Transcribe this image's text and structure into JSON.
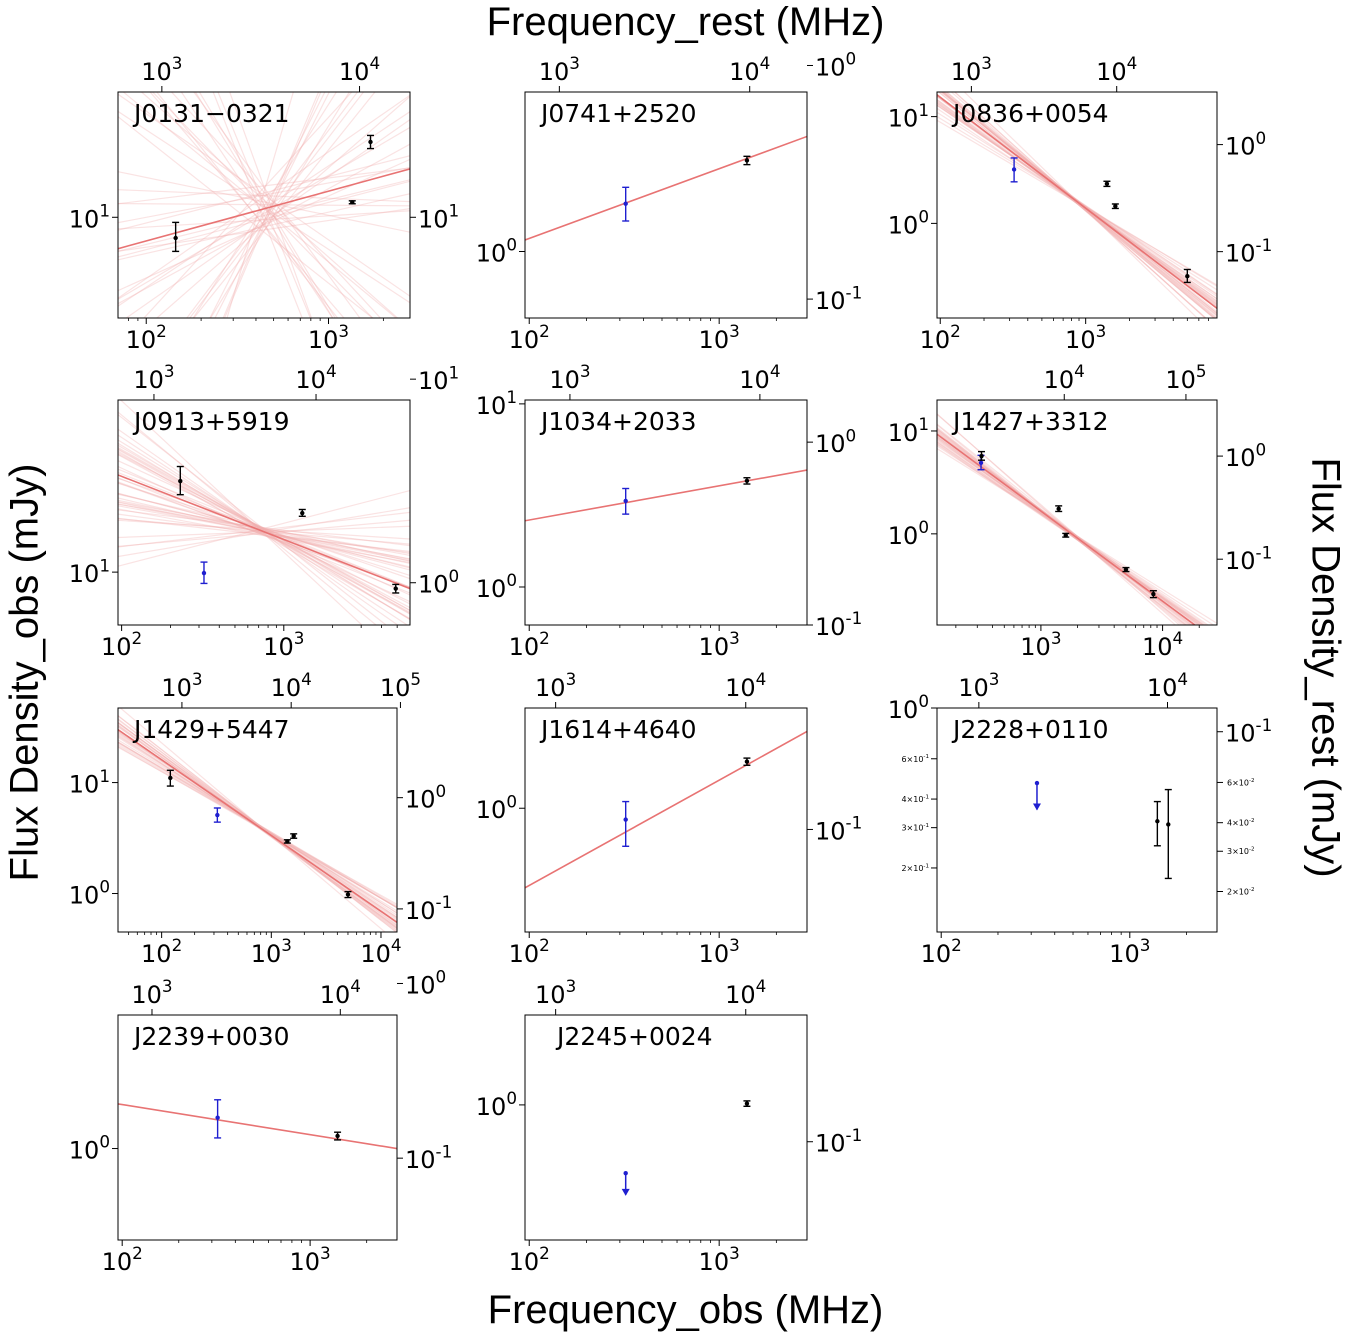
{
  "figure": {
    "top_label": "Frequency_rest (MHz)",
    "bottom_label": "Frequency_obs (MHz)",
    "left_label": "Flux Density_obs (mJy)",
    "right_label": "Flux Density_rest (mJy)",
    "colors": {
      "fit": "#e87373",
      "fit_bundle": "#f2b0b0",
      "detection": "#000000",
      "low_freq": "#1f1fd0"
    }
  },
  "chart_data": [
    {
      "type": "scatter",
      "name": "J0131−0321",
      "scale": "log",
      "xlim": [
        70,
        2800
      ],
      "ylim": [
        8.2,
        12.8
      ],
      "rest_xlim": [
        600,
        18000
      ],
      "rest_ylim": [
        8.2,
        12.8
      ],
      "x_ticks": [
        {
          "v": 100,
          "l": "10^2"
        },
        {
          "v": 1000,
          "l": "10^3"
        }
      ],
      "y_ticks": [
        {
          "v": 10,
          "l": "10^1"
        }
      ],
      "top_ticks": [
        {
          "v": 1000,
          "l": "10^3"
        },
        {
          "v": 10000,
          "l": "10^4"
        }
      ],
      "right_ticks": [
        {
          "v": 10,
          "l": "10^1"
        }
      ],
      "fit": {
        "x": [
          70,
          2800
        ],
        "y": [
          9.4,
          11.0
        ]
      },
      "bundle": "wide",
      "points": [
        {
          "x": 145,
          "y": 9.6,
          "lo": 9.35,
          "hi": 9.9,
          "color": "black",
          "upper": false
        },
        {
          "x": 1350,
          "y": 10.3,
          "lo": 10.27,
          "hi": 10.33,
          "color": "black",
          "upper": false
        },
        {
          "x": 1700,
          "y": 11.6,
          "lo": 11.45,
          "hi": 11.75,
          "color": "black",
          "upper": false
        }
      ]
    },
    {
      "type": "scatter",
      "name": "J0741+2520",
      "scale": "log",
      "xlim": [
        95,
        2900
      ],
      "ylim": [
        0.52,
        4.8
      ],
      "rest_xlim": [
        660,
        20000
      ],
      "rest_ylim": [
        0.083,
        0.77
      ],
      "x_ticks": [
        {
          "v": 100,
          "l": "10^2"
        },
        {
          "v": 1000,
          "l": "10^3"
        }
      ],
      "y_ticks": [
        {
          "v": 1,
          "l": "10^0"
        }
      ],
      "top_ticks": [
        {
          "v": 1000,
          "l": "10^3"
        },
        {
          "v": 10000,
          "l": "10^4"
        }
      ],
      "right_ticks": [
        {
          "v": 1,
          "l": "10^0"
        },
        {
          "v": 0.1,
          "l": "10^-1"
        }
      ],
      "fit": {
        "x": [
          95,
          2900
        ],
        "y": [
          1.12,
          3.1
        ]
      },
      "bundle": "none",
      "points": [
        {
          "x": 322,
          "y": 1.6,
          "lo": 1.35,
          "hi": 1.88,
          "color": "blue",
          "upper": false
        },
        {
          "x": 1400,
          "y": 2.45,
          "lo": 2.35,
          "hi": 2.55,
          "color": "black",
          "upper": false
        }
      ]
    },
    {
      "type": "scatter",
      "name": "J0836+0054",
      "scale": "log",
      "xlim": [
        95,
        8000
      ],
      "ylim": [
        0.13,
        17
      ],
      "rest_xlim": [
        580,
        49000
      ],
      "rest_ylim": [
        0.024,
        3.1
      ],
      "x_ticks": [
        {
          "v": 100,
          "l": "10^2"
        },
        {
          "v": 1000,
          "l": "10^3"
        }
      ],
      "y_ticks": [
        {
          "v": 1,
          "l": "10^0"
        },
        {
          "v": 10,
          "l": "10^1"
        }
      ],
      "top_ticks": [
        {
          "v": 1000,
          "l": "10^3"
        },
        {
          "v": 10000,
          "l": "10^4"
        }
      ],
      "right_ticks": [
        {
          "v": 1,
          "l": "10^0"
        },
        {
          "v": 0.1,
          "l": "10^-1"
        }
      ],
      "fit": {
        "x": [
          95,
          8000
        ],
        "y": [
          16.0,
          0.16
        ]
      },
      "bundle": "medium",
      "points": [
        {
          "x": 322,
          "y": 3.2,
          "lo": 2.45,
          "hi": 4.1,
          "color": "blue",
          "upper": false
        },
        {
          "x": 1400,
          "y": 2.35,
          "lo": 2.22,
          "hi": 2.48,
          "color": "black",
          "upper": false
        },
        {
          "x": 1600,
          "y": 1.45,
          "lo": 1.38,
          "hi": 1.52,
          "color": "black",
          "upper": false
        },
        {
          "x": 5000,
          "y": 0.32,
          "lo": 0.28,
          "hi": 0.37,
          "color": "black",
          "upper": false
        }
      ]
    },
    {
      "type": "scatter",
      "name": "J0913+5919",
      "scale": "log",
      "xlim": [
        95,
        6000
      ],
      "ylim": [
        5.5,
        70
      ],
      "rest_xlim": [
        600,
        38000
      ],
      "rest_ylim": [
        0.62,
        7.9
      ],
      "x_ticks": [
        {
          "v": 100,
          "l": "10^2"
        },
        {
          "v": 1000,
          "l": "10^3"
        }
      ],
      "y_ticks": [
        {
          "v": 10,
          "l": "10^1"
        }
      ],
      "top_ticks": [
        {
          "v": 1000,
          "l": "10^3"
        },
        {
          "v": 10000,
          "l": "10^4"
        }
      ],
      "right_ticks": [
        {
          "v": 10,
          "l": "10^1"
        },
        {
          "v": 1,
          "l": "10^0"
        }
      ],
      "fit": {
        "x": [
          95,
          6000
        ],
        "y": [
          30,
          8.3
        ]
      },
      "bundle": "wide",
      "points": [
        {
          "x": 230,
          "y": 28,
          "lo": 24,
          "hi": 33,
          "color": "black",
          "upper": false
        },
        {
          "x": 322,
          "y": 9.9,
          "lo": 8.8,
          "hi": 11.2,
          "color": "blue",
          "upper": false
        },
        {
          "x": 1300,
          "y": 19.5,
          "lo": 18.8,
          "hi": 20.3,
          "color": "black",
          "upper": false
        },
        {
          "x": 4900,
          "y": 8.3,
          "lo": 7.9,
          "hi": 8.7,
          "color": "black",
          "upper": false
        }
      ]
    },
    {
      "type": "scatter",
      "name": "J1034+2033",
      "scale": "log",
      "xlim": [
        95,
        2900
      ],
      "ylim": [
        0.62,
        10.5
      ],
      "rest_xlim": [
        580,
        17700
      ],
      "rest_ylim": [
        0.1,
        1.7
      ],
      "x_ticks": [
        {
          "v": 100,
          "l": "10^2"
        },
        {
          "v": 1000,
          "l": "10^3"
        }
      ],
      "y_ticks": [
        {
          "v": 1,
          "l": "10^0"
        },
        {
          "v": 10,
          "l": "10^1"
        }
      ],
      "top_ticks": [
        {
          "v": 1000,
          "l": "10^3"
        },
        {
          "v": 10000,
          "l": "10^4"
        }
      ],
      "right_ticks": [
        {
          "v": 1,
          "l": "10^0"
        },
        {
          "v": 0.1,
          "l": "10^-1"
        }
      ],
      "fit": {
        "x": [
          95,
          2900
        ],
        "y": [
          2.3,
          4.35
        ]
      },
      "bundle": "none",
      "points": [
        {
          "x": 322,
          "y": 2.95,
          "lo": 2.5,
          "hi": 3.45,
          "color": "blue",
          "upper": false
        },
        {
          "x": 1400,
          "y": 3.8,
          "lo": 3.65,
          "hi": 3.95,
          "color": "black",
          "upper": false
        }
      ]
    },
    {
      "type": "scatter",
      "name": "J1427+3312",
      "scale": "log",
      "xlim": [
        140,
        28000
      ],
      "ylim": [
        0.13,
        20
      ],
      "rest_xlim": [
        900,
        180000
      ],
      "rest_ylim": [
        0.023,
        3.5
      ],
      "x_ticks": [
        {
          "v": 1000,
          "l": "10^3"
        },
        {
          "v": 10000,
          "l": "10^4"
        }
      ],
      "y_ticks": [
        {
          "v": 1,
          "l": "10^0"
        },
        {
          "v": 10,
          "l": "10^1"
        }
      ],
      "top_ticks": [
        {
          "v": 10000,
          "l": "10^4"
        },
        {
          "v": 100000,
          "l": "10^5"
        }
      ],
      "right_ticks": [
        {
          "v": 1,
          "l": "10^0"
        },
        {
          "v": 0.1,
          "l": "10^-1"
        }
      ],
      "fit": {
        "x": [
          140,
          28000
        ],
        "y": [
          9.3,
          0.09
        ]
      },
      "bundle": "tight",
      "points": [
        {
          "x": 322,
          "y": 4.9,
          "lo": 4.2,
          "hi": 5.8,
          "color": "blue",
          "upper": false
        },
        {
          "x": 325,
          "y": 5.7,
          "lo": 5.2,
          "hi": 6.3,
          "color": "black",
          "upper": false
        },
        {
          "x": 1400,
          "y": 1.75,
          "lo": 1.65,
          "hi": 1.87,
          "color": "black",
          "upper": false
        },
        {
          "x": 1600,
          "y": 0.97,
          "lo": 0.93,
          "hi": 1.01,
          "color": "black",
          "upper": false
        },
        {
          "x": 5000,
          "y": 0.45,
          "lo": 0.43,
          "hi": 0.47,
          "color": "black",
          "upper": false
        },
        {
          "x": 8400,
          "y": 0.26,
          "lo": 0.24,
          "hi": 0.28,
          "color": "black",
          "upper": false
        }
      ]
    },
    {
      "type": "scatter",
      "name": "J1429+5447",
      "scale": "log",
      "xlim": [
        40,
        14000
      ],
      "ylim": [
        0.45,
        47
      ],
      "rest_xlim": [
        260,
        93000
      ],
      "rest_ylim": [
        0.062,
        6.4
      ],
      "x_ticks": [
        {
          "v": 100,
          "l": "10^2"
        },
        {
          "v": 1000,
          "l": "10^3"
        },
        {
          "v": 10000,
          "l": "10^4"
        }
      ],
      "y_ticks": [
        {
          "v": 1,
          "l": "10^0"
        },
        {
          "v": 10,
          "l": "10^1"
        }
      ],
      "top_ticks": [
        {
          "v": 1000,
          "l": "10^3"
        },
        {
          "v": 10000,
          "l": "10^4"
        },
        {
          "v": 100000,
          "l": "10^5"
        }
      ],
      "right_ticks": [
        {
          "v": 1,
          "l": "10^0"
        },
        {
          "v": 0.1,
          "l": "10^-1"
        }
      ],
      "fit": {
        "x": [
          40,
          14000
        ],
        "y": [
          30,
          0.55
        ]
      },
      "bundle": "tight",
      "points": [
        {
          "x": 120,
          "y": 11,
          "lo": 9.3,
          "hi": 12.9,
          "color": "black",
          "upper": false
        },
        {
          "x": 322,
          "y": 5.1,
          "lo": 4.4,
          "hi": 5.9,
          "color": "blue",
          "upper": false
        },
        {
          "x": 1400,
          "y": 2.95,
          "lo": 2.85,
          "hi": 3.05,
          "color": "black",
          "upper": false
        },
        {
          "x": 1600,
          "y": 3.3,
          "lo": 3.15,
          "hi": 3.45,
          "color": "black",
          "upper": false
        },
        {
          "x": 5000,
          "y": 0.98,
          "lo": 0.92,
          "hi": 1.04,
          "color": "black",
          "upper": false
        }
      ]
    },
    {
      "type": "scatter",
      "name": "J1614+4640",
      "scale": "log",
      "xlim": [
        95,
        2900
      ],
      "ylim": [
        0.17,
        4.2
      ],
      "rest_xlim": [
        690,
        21000
      ],
      "rest_ylim": [
        0.023,
        0.57
      ],
      "x_ticks": [
        {
          "v": 100,
          "l": "10^2"
        },
        {
          "v": 1000,
          "l": "10^3"
        }
      ],
      "y_ticks": [
        {
          "v": 1,
          "l": "10^0"
        }
      ],
      "top_ticks": [
        {
          "v": 1000,
          "l": "10^3"
        },
        {
          "v": 10000,
          "l": "10^4"
        }
      ],
      "right_ticks": [
        {
          "v": 0.1,
          "l": "10^-1"
        }
      ],
      "fit": {
        "x": [
          95,
          2900
        ],
        "y": [
          0.32,
          3.0
        ]
      },
      "bundle": "none",
      "points": [
        {
          "x": 322,
          "y": 0.85,
          "lo": 0.58,
          "hi": 1.1,
          "color": "blue",
          "upper": false
        },
        {
          "x": 1400,
          "y": 1.95,
          "lo": 1.85,
          "hi": 2.05,
          "color": "black",
          "upper": false
        }
      ]
    },
    {
      "type": "scatter",
      "name": "J2228+0110",
      "scale": "log",
      "xlim": [
        95,
        2900
      ],
      "ylim": [
        0.105,
        1.0
      ],
      "rest_xlim": [
        600,
        18300
      ],
      "rest_ylim": [
        0.0133,
        0.127
      ],
      "x_ticks": [
        {
          "v": 100,
          "l": "10^2"
        },
        {
          "v": 1000,
          "l": "10^3"
        }
      ],
      "y_ticks": [
        {
          "v": 1,
          "l": "10^0"
        },
        {
          "v": 0.6,
          "l": "6×10^-1",
          "minor": true
        },
        {
          "v": 0.4,
          "l": "4×10^-1",
          "minor": true
        },
        {
          "v": 0.3,
          "l": "3×10^-1",
          "minor": true
        },
        {
          "v": 0.2,
          "l": "2×10^-1",
          "minor": true
        }
      ],
      "top_ticks": [
        {
          "v": 1000,
          "l": "10^3"
        },
        {
          "v": 10000,
          "l": "10^4"
        }
      ],
      "right_ticks": [
        {
          "v": 0.1,
          "l": "10^-1"
        },
        {
          "v": 0.06,
          "l": "6×10^-2",
          "minor": true
        },
        {
          "v": 0.04,
          "l": "4×10^-2",
          "minor": true
        },
        {
          "v": 0.03,
          "l": "3×10^-2",
          "minor": true
        },
        {
          "v": 0.02,
          "l": "2×10^-2",
          "minor": true
        }
      ],
      "fit": null,
      "bundle": "none",
      "points": [
        {
          "x": 322,
          "y": 0.47,
          "lo": 0.36,
          "hi": 0.47,
          "color": "blue",
          "upper": true
        },
        {
          "x": 1400,
          "y": 0.32,
          "lo": 0.25,
          "hi": 0.39,
          "color": "black",
          "upper": false
        },
        {
          "x": 1600,
          "y": 0.31,
          "lo": 0.18,
          "hi": 0.44,
          "color": "black",
          "upper": false
        }
      ]
    },
    {
      "type": "scatter",
      "name": "J2239+0030",
      "scale": "log",
      "xlim": [
        95,
        2900
      ],
      "ylim": [
        0.3,
        5.8
      ],
      "rest_xlim": [
        660,
        20000
      ],
      "rest_ylim": [
        0.034,
        0.66
      ],
      "x_ticks": [
        {
          "v": 100,
          "l": "10^2"
        },
        {
          "v": 1000,
          "l": "10^3"
        }
      ],
      "y_ticks": [
        {
          "v": 1,
          "l": "10^0"
        }
      ],
      "top_ticks": [
        {
          "v": 1000,
          "l": "10^3"
        },
        {
          "v": 10000,
          "l": "10^4"
        }
      ],
      "right_ticks": [
        {
          "v": 1,
          "l": "10^0"
        },
        {
          "v": 0.1,
          "l": "10^-1"
        }
      ],
      "fit": {
        "x": [
          95,
          2900
        ],
        "y": [
          1.8,
          1.0
        ]
      },
      "bundle": "none",
      "points": [
        {
          "x": 322,
          "y": 1.5,
          "lo": 1.15,
          "hi": 1.9,
          "color": "blue",
          "upper": false
        },
        {
          "x": 1400,
          "y": 1.18,
          "lo": 1.12,
          "hi": 1.24,
          "color": "black",
          "upper": false
        }
      ]
    },
    {
      "type": "scatter",
      "name": "J2245+0024",
      "scale": "log",
      "xlim": [
        95,
        2900
      ],
      "ylim": [
        0.14,
        3.7
      ],
      "rest_xlim": [
        690,
        21000
      ],
      "rest_ylim": [
        0.024,
        0.63
      ],
      "x_ticks": [
        {
          "v": 100,
          "l": "10^2"
        },
        {
          "v": 1000,
          "l": "10^3"
        }
      ],
      "y_ticks": [
        {
          "v": 1,
          "l": "10^0"
        }
      ],
      "top_ticks": [
        {
          "v": 1000,
          "l": "10^3"
        },
        {
          "v": 10000,
          "l": "10^4"
        }
      ],
      "right_ticks": [
        {
          "v": 0.1,
          "l": "10^-1"
        }
      ],
      "fit": null,
      "bundle": "none",
      "points": [
        {
          "x": 322,
          "y": 0.37,
          "lo": 0.27,
          "hi": 0.37,
          "color": "blue",
          "upper": true
        },
        {
          "x": 1400,
          "y": 1.02,
          "lo": 0.98,
          "hi": 1.06,
          "color": "black",
          "upper": false
        }
      ]
    }
  ]
}
